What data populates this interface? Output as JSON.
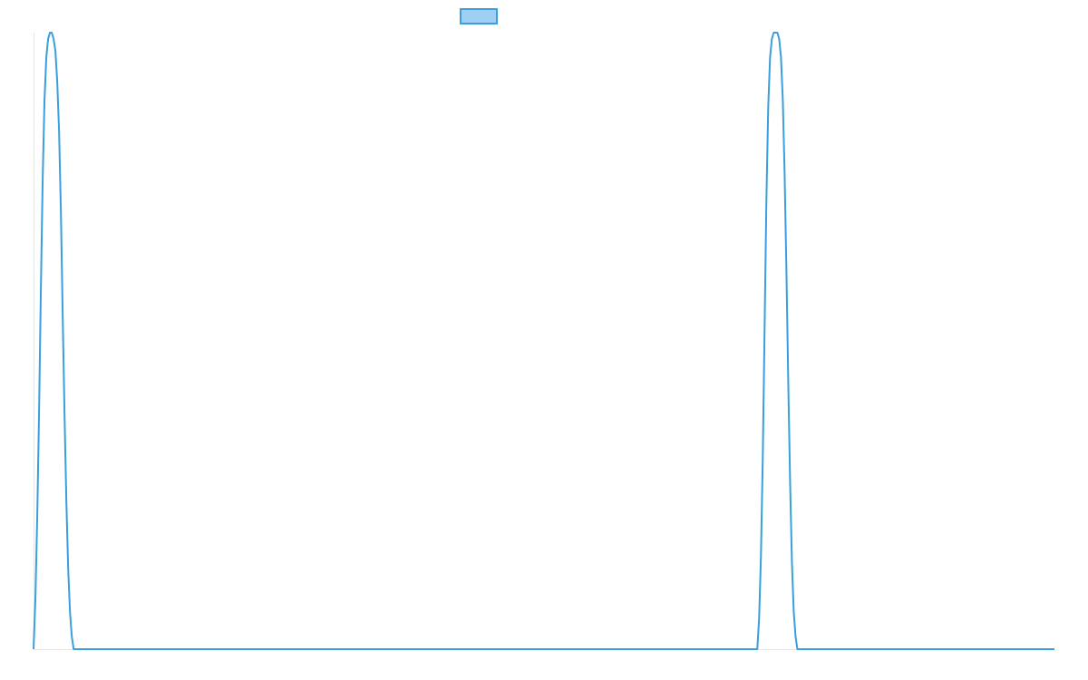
{
  "chart_data": {
    "type": "line",
    "title": "",
    "xlabel": "",
    "ylabel": "",
    "grid": false,
    "legend_position": "top-center",
    "legend_entries": [
      {
        "label": "",
        "color": "#3a9fdc",
        "fill": "#9fd0f3"
      }
    ],
    "xlim": [
      0,
      1120
    ],
    "ylim": [
      0,
      1
    ],
    "series": [
      {
        "color": "#3a9fdc",
        "x": [
          0,
          2,
          4,
          6,
          8,
          10,
          12,
          14,
          16,
          18,
          20,
          22,
          24,
          26,
          28,
          30,
          32,
          34,
          36,
          38,
          40,
          42,
          44,
          794,
          796,
          798,
          800,
          802,
          804,
          806,
          808,
          810,
          812,
          814,
          816,
          818,
          820,
          822,
          824,
          826,
          828,
          830,
          832,
          834,
          836,
          838,
          1120
        ],
        "y": [
          0,
          0.08,
          0.21,
          0.38,
          0.58,
          0.76,
          0.89,
          0.96,
          0.99,
          1.0,
          1.0,
          0.99,
          0.97,
          0.92,
          0.84,
          0.71,
          0.54,
          0.38,
          0.24,
          0.13,
          0.06,
          0.02,
          0,
          0,
          0.05,
          0.15,
          0.31,
          0.52,
          0.73,
          0.88,
          0.96,
          0.99,
          1.0,
          1.0,
          1.0,
          0.99,
          0.96,
          0.89,
          0.77,
          0.61,
          0.43,
          0.27,
          0.14,
          0.06,
          0.02,
          0,
          0
        ]
      }
    ]
  }
}
